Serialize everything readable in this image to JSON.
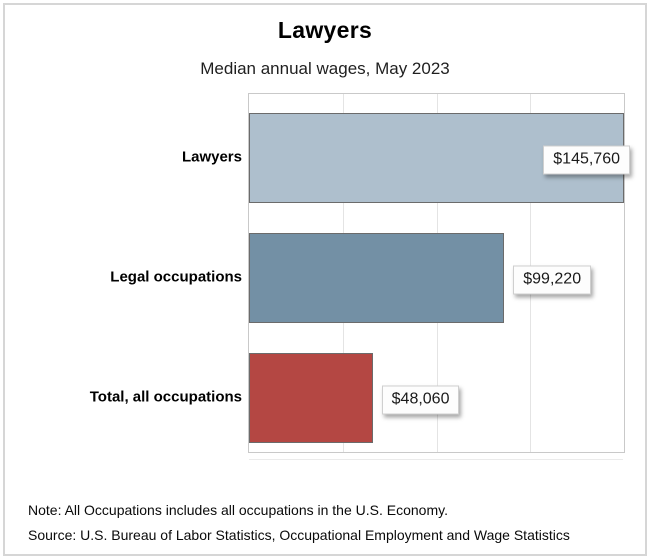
{
  "header": {
    "title": "Lawyers",
    "subtitle": "Median annual wages, May 2023"
  },
  "chart_data": {
    "type": "bar",
    "orientation": "horizontal",
    "title": "Lawyers",
    "subtitle": "Median annual wages, May 2023",
    "categories": [
      "Lawyers",
      "Legal occupations",
      "Total, all occupations"
    ],
    "values": [
      145760,
      99220,
      48060
    ],
    "value_labels": [
      "$145,760",
      "$99,220",
      "$48,060"
    ],
    "bar_colors": [
      "#aebfcd",
      "#7390a5",
      "#b44743"
    ],
    "bar_border_color": "#6b6b6b",
    "xlim": [
      0,
      145760
    ],
    "grid": "vertical gridlines at quarter intervals, no axis tick labels",
    "legend": "none"
  },
  "footer": {
    "note": "Note: All Occupations includes all occupations in the U.S. Economy.",
    "source": "Source: U.S. Bureau of Labor Statistics, Occupational Employment and Wage Statistics"
  }
}
